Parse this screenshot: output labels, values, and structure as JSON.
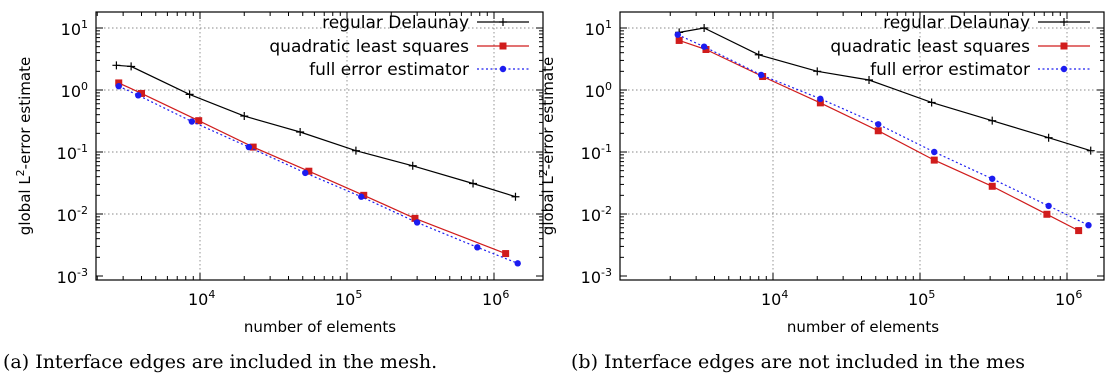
{
  "chart_data": [
    {
      "type": "line",
      "caption": "(a) Interface edges are included in the mesh.",
      "xlabel": "number of elements",
      "ylabel_pre": "global L",
      "ylabel_sup": "2",
      "ylabel_post": "-error estimate",
      "xscale": "log",
      "yscale": "log",
      "xlim": [
        2000,
        1800000
      ],
      "ylim": [
        0.001,
        20
      ],
      "grid": true,
      "legend": "top-right",
      "x_ticks": [
        {
          "base": "10",
          "exp": "4"
        },
        {
          "base": "10",
          "exp": "5"
        },
        {
          "base": "10",
          "exp": "6"
        }
      ],
      "y_ticks": [
        {
          "base": "10",
          "exp": "1"
        },
        {
          "base": "10",
          "exp": "0"
        },
        {
          "base": "10",
          "exp": "-1"
        },
        {
          "base": "10",
          "exp": "-2"
        },
        {
          "base": "10",
          "exp": "-3"
        }
      ],
      "series": [
        {
          "name": "regular Delaunay",
          "color": "#000000",
          "marker": "plus",
          "dash": "solid",
          "x": [
            2700,
            3400,
            8500,
            20000,
            48000,
            115000,
            280000,
            720000,
            1400000
          ],
          "y": [
            2.5,
            2.4,
            0.85,
            0.38,
            0.21,
            0.105,
            0.06,
            0.031,
            0.019
          ]
        },
        {
          "name": "quadratic least squares",
          "color": "#d01c1c",
          "marker": "square",
          "dash": "solid",
          "x": [
            2800,
            4000,
            9800,
            23000,
            55000,
            130000,
            290000,
            1200000
          ],
          "y": [
            1.3,
            0.88,
            0.32,
            0.12,
            0.049,
            0.02,
            0.0085,
            0.0023
          ]
        },
        {
          "name": "full error estimator",
          "color": "#1c1cf0",
          "marker": "circle",
          "dash": "dotted",
          "x": [
            2800,
            3800,
            8800,
            21500,
            52000,
            125000,
            300000,
            770000,
            1450000
          ],
          "y": [
            1.15,
            0.82,
            0.31,
            0.12,
            0.046,
            0.019,
            0.0073,
            0.0029,
            0.0016
          ]
        }
      ]
    },
    {
      "type": "line",
      "caption": "(b) Interface edges are not included in the mes",
      "xlabel": "number of elements",
      "ylabel_pre": "global L",
      "ylabel_sup": "2",
      "ylabel_post": "-error estimate",
      "xscale": "log",
      "yscale": "log",
      "xlim": [
        2000,
        1800000
      ],
      "ylim": [
        0.001,
        20
      ],
      "grid": true,
      "legend": "top-right",
      "x_ticks": [
        {
          "base": "10",
          "exp": "4"
        },
        {
          "base": "10",
          "exp": "5"
        },
        {
          "base": "10",
          "exp": "6"
        }
      ],
      "y_ticks": [
        {
          "base": "10",
          "exp": "1"
        },
        {
          "base": "10",
          "exp": "0"
        },
        {
          "base": "10",
          "exp": "-1"
        },
        {
          "base": "10",
          "exp": "-2"
        },
        {
          "base": "10",
          "exp": "-3"
        }
      ],
      "series": [
        {
          "name": "regular Delaunay",
          "color": "#000000",
          "marker": "plus",
          "dash": "solid",
          "x": [
            2300,
            3400,
            8000,
            20000,
            45000,
            120000,
            310000,
            750000,
            1450000
          ],
          "y": [
            8.5,
            10,
            3.7,
            2.0,
            1.45,
            0.63,
            0.32,
            0.17,
            0.105
          ]
        },
        {
          "name": "quadratic least squares",
          "color": "#d01c1c",
          "marker": "square",
          "dash": "solid",
          "x": [
            2300,
            3500,
            8500,
            21000,
            52000,
            125000,
            310000,
            730000,
            1200000
          ],
          "y": [
            6.3,
            4.5,
            1.65,
            0.62,
            0.22,
            0.074,
            0.028,
            0.0099,
            0.0054
          ]
        },
        {
          "name": "full error estimator",
          "color": "#1c1cf0",
          "marker": "circle",
          "dash": "dotted",
          "x": [
            2250,
            3400,
            8300,
            21000,
            52000,
            125000,
            310000,
            750000,
            1400000
          ],
          "y": [
            7.8,
            5.0,
            1.75,
            0.72,
            0.28,
            0.1,
            0.037,
            0.0135,
            0.0066
          ]
        }
      ]
    }
  ]
}
